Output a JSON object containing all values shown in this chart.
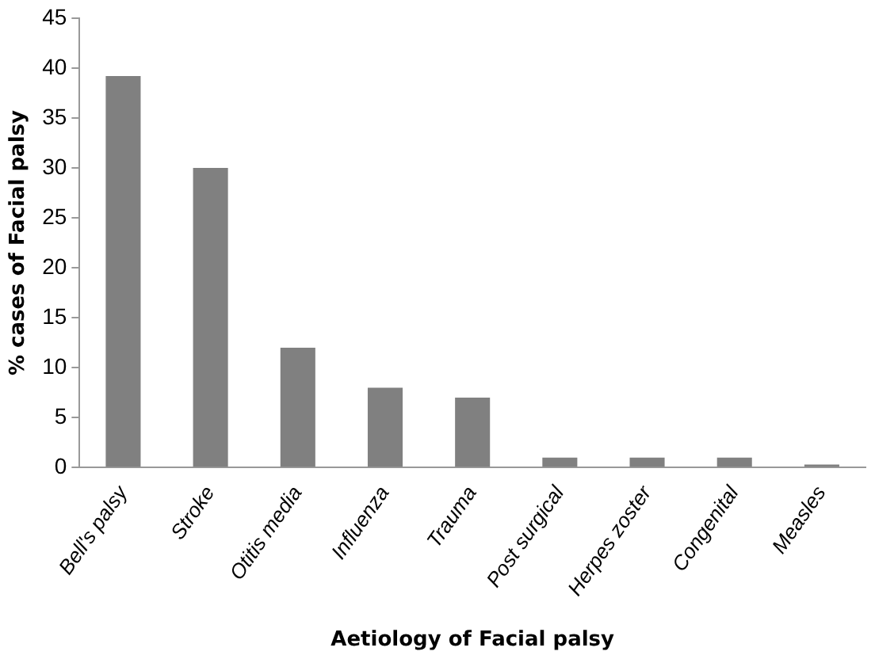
{
  "chart_data": {
    "type": "bar",
    "xlabel": "Aetiology of Facial palsy",
    "ylabel": "% cases of Facial palsy",
    "categories": [
      "Bell's palsy",
      "Stroke",
      "Otitis media",
      "Influenza",
      "Trauma",
      "Post surgical",
      "Herpes zoster",
      "Congenital",
      "Measles"
    ],
    "values": [
      39.2,
      30,
      12,
      8,
      7,
      1,
      1,
      1,
      0.3
    ],
    "color": "#808080",
    "ylim": [
      0,
      45
    ],
    "yticks": [
      0,
      5,
      10,
      15,
      20,
      25,
      30,
      35,
      40,
      45
    ],
    "grid": false,
    "legend": false
  }
}
